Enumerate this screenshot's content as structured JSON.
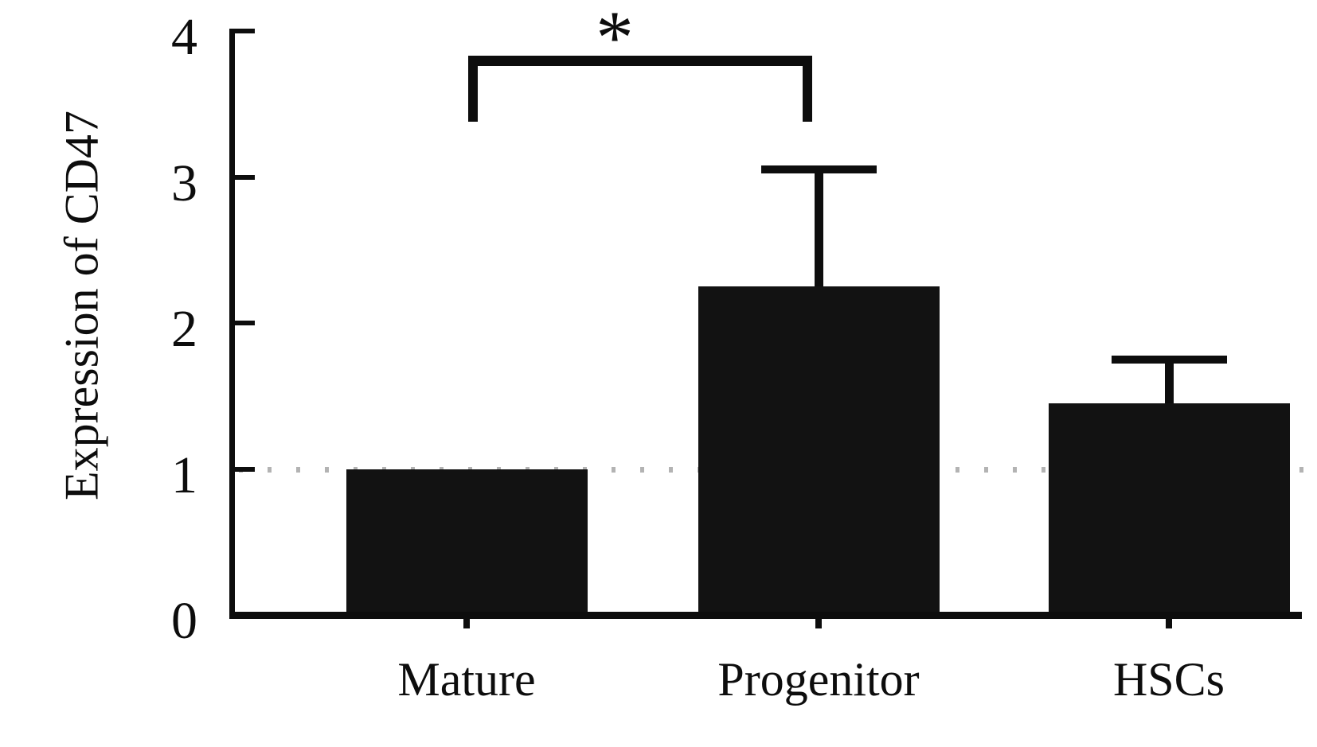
{
  "chart_data": {
    "type": "bar",
    "title": "",
    "xlabel": "",
    "ylabel": "Expression of CD47",
    "categories": [
      "Mature",
      "Progenitor",
      "HSCs"
    ],
    "values": [
      1.0,
      2.25,
      1.45
    ],
    "error_plus": [
      0,
      0.8,
      0.3
    ],
    "yticks": [
      0,
      1,
      2,
      3,
      4
    ],
    "ylim": [
      0,
      4
    ],
    "grid": false,
    "legend": "none",
    "bar_color": "#121212",
    "axis_color": "#0d0d0d",
    "reference_line": {
      "y": 1,
      "style": "dotted",
      "color": "#b3b3b3"
    },
    "significance": {
      "label": "*",
      "between": [
        "Mature",
        "Progenitor"
      ]
    }
  }
}
